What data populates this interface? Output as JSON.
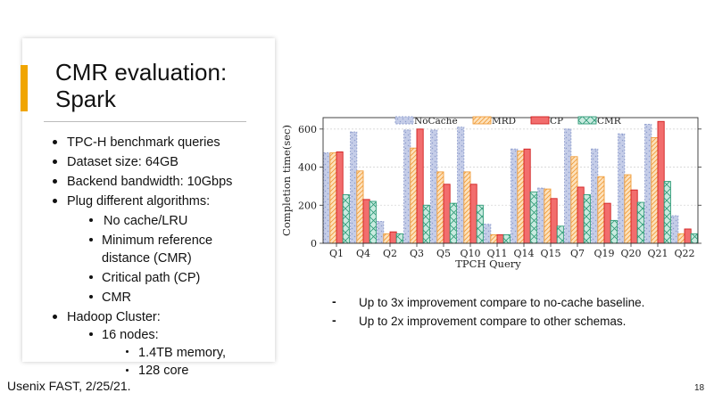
{
  "slide": {
    "title_line1": "CMR evaluation:",
    "title_line2": "Spark",
    "bullets": [
      "TPC-H benchmark queries",
      "Dataset size: 64GB",
      "Backend bandwidth: 10Gbps",
      "Plug different algorithms:",
      "No cache/LRU",
      "Minimum reference",
      "distance (CMR)",
      "Critical path (CP)",
      "CMR",
      "Hadoop Cluster:",
      "16 nodes:",
      "1.4TB memory,",
      "128 core"
    ],
    "footer": "Usenix FAST, 2/25/21.",
    "page_number": "18",
    "notes": [
      "Up to 3x improvement compare to no-cache baseline.",
      "Up to 2x improvement compare to other schemas."
    ],
    "note_marker": "-"
  },
  "colors": {
    "accent": "#f0a500",
    "nocache_fill": "#c5cde8",
    "nocache_edge": "#8d9ccc",
    "mrd_fill": "#fde2bd",
    "mrd_edge": "#f09d3a",
    "cp_fill": "#f26d6d",
    "cp_edge": "#d12121",
    "cmr_fill": "#c9ebe0",
    "cmr_edge": "#2d9a76"
  },
  "chart_data": {
    "type": "bar",
    "xlabel": "TPCH Query",
    "ylabel": "Completion time(sec)",
    "ylim": [
      0,
      660
    ],
    "yticks": [
      "0",
      "200",
      "400",
      "600"
    ],
    "grid": true,
    "legend_position": "top",
    "categories": [
      "Q1",
      "Q4",
      "Q2",
      "Q3",
      "Q5",
      "Q10",
      "Q11",
      "Q14",
      "Q15",
      "Q7",
      "Q19",
      "Q20",
      "Q21",
      "Q22"
    ],
    "series": [
      {
        "name": "NoCache",
        "values": [
          475,
          585,
          115,
          595,
          595,
          610,
          100,
          495,
          290,
          600,
          495,
          575,
          625,
          145
        ]
      },
      {
        "name": "MRD",
        "values": [
          475,
          380,
          50,
          500,
          375,
          375,
          45,
          485,
          285,
          455,
          350,
          360,
          555,
          50
        ]
      },
      {
        "name": "CP",
        "values": [
          480,
          230,
          60,
          600,
          310,
          310,
          45,
          495,
          235,
          295,
          210,
          280,
          640,
          75
        ]
      },
      {
        "name": "CMR",
        "values": [
          255,
          220,
          50,
          200,
          210,
          200,
          45,
          270,
          90,
          255,
          120,
          215,
          325,
          50
        ]
      }
    ]
  }
}
